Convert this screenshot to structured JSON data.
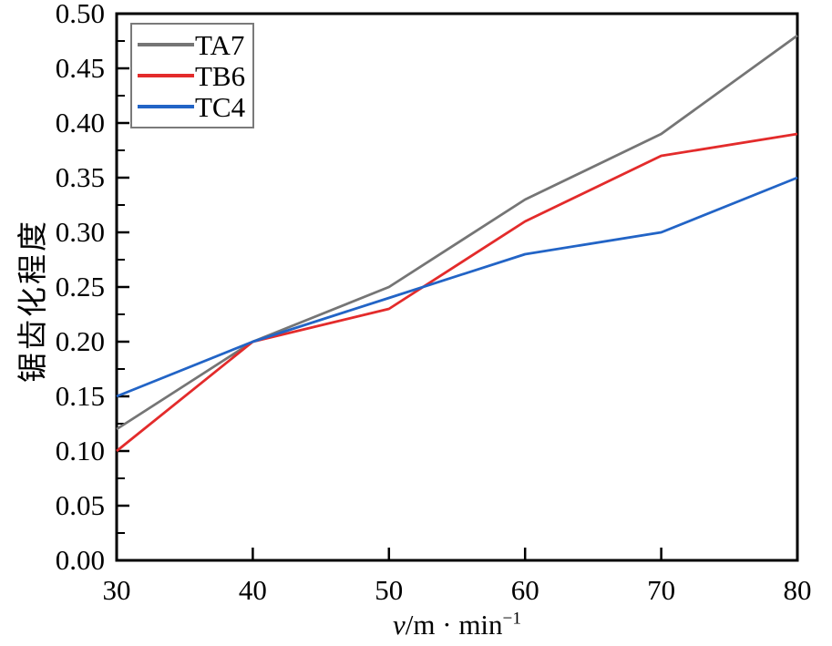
{
  "chart_data": {
    "type": "line",
    "x": [
      30,
      40,
      50,
      60,
      70,
      80
    ],
    "x_tick_labels": [
      "30",
      "40",
      "50",
      "60",
      "70",
      "80"
    ],
    "y_ticks": [
      0.0,
      0.05,
      0.1,
      0.15,
      0.2,
      0.25,
      0.3,
      0.35,
      0.4,
      0.45,
      0.5
    ],
    "y_tick_labels": [
      "0.00",
      "0.05",
      "0.10",
      "0.15",
      "0.20",
      "0.25",
      "0.30",
      "0.35",
      "0.40",
      "0.45",
      "0.50"
    ],
    "y_minor_step": 0.025,
    "xlim": [
      30,
      80
    ],
    "ylim": [
      0,
      0.5
    ],
    "grid": false,
    "legend_position": "top-left",
    "xlabel": "v/m·min⁻¹",
    "xlabel_parts": {
      "italic": "v",
      "main": "/m · min",
      "superscript": "−1"
    },
    "ylabel": "锯齿化程度",
    "axis_color": "#000000",
    "background": "#ffffff",
    "series": [
      {
        "name": "TA7",
        "color": "#757575",
        "values": [
          0.12,
          0.2,
          0.25,
          0.33,
          0.39,
          0.48
        ]
      },
      {
        "name": "TB6",
        "color": "#e32b2b",
        "values": [
          0.1,
          0.2,
          0.23,
          0.31,
          0.37,
          0.39
        ]
      },
      {
        "name": "TC4",
        "color": "#2264c6",
        "values": [
          0.15,
          0.2,
          0.24,
          0.28,
          0.3,
          0.35
        ]
      }
    ]
  },
  "legend": {
    "items": [
      {
        "label": "TA7",
        "color": "#757575"
      },
      {
        "label": "TB6",
        "color": "#e32b2b"
      },
      {
        "label": "TC4",
        "color": "#2264c6"
      }
    ]
  }
}
